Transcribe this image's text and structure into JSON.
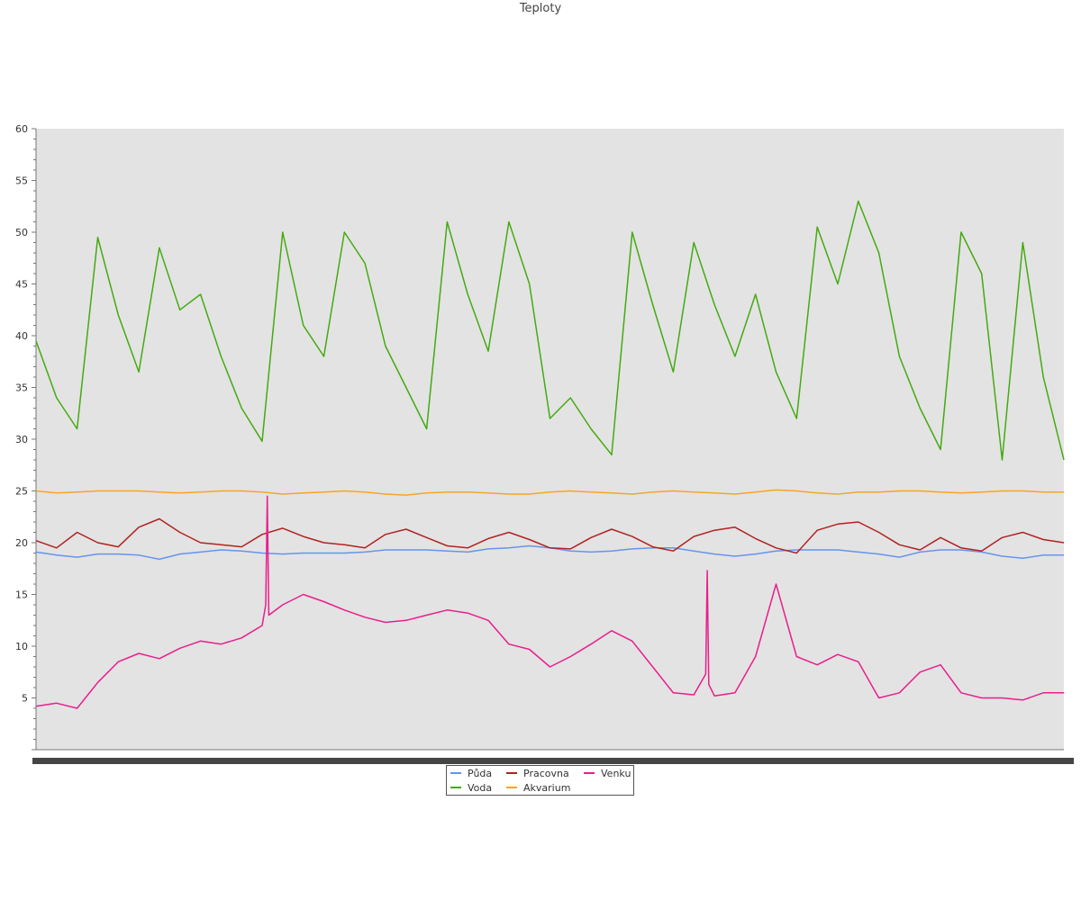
{
  "chart_data": {
    "type": "line",
    "title": "Teploty",
    "xlabel": "",
    "ylabel": "",
    "ylim": [
      0,
      60
    ],
    "yticks": [
      5,
      10,
      15,
      20,
      25,
      30,
      35,
      40,
      45,
      50,
      55,
      60
    ],
    "grid": false,
    "background": "#e3e3e3",
    "legend_position": "bottom-center",
    "x": [
      0,
      2,
      4,
      6,
      8,
      10,
      12,
      14,
      16,
      18,
      20,
      22,
      24,
      26,
      28,
      30,
      32,
      34,
      36,
      38,
      40,
      42,
      44,
      46,
      48,
      50,
      52,
      54,
      56,
      58,
      60,
      62,
      64,
      66,
      68,
      70,
      72,
      74,
      76,
      78,
      80,
      82,
      84,
      86,
      88,
      90,
      92,
      94,
      96,
      98,
      100
    ],
    "series": [
      {
        "name": "Půda",
        "color": "#6495ed",
        "values": [
          19.1,
          18.8,
          18.6,
          18.9,
          18.9,
          18.8,
          18.4,
          18.9,
          19.1,
          19.3,
          19.2,
          19.0,
          18.9,
          19.0,
          19.0,
          19.0,
          19.1,
          19.3,
          19.3,
          19.3,
          19.2,
          19.1,
          19.4,
          19.5,
          19.7,
          19.5,
          19.2,
          19.1,
          19.2,
          19.4,
          19.5,
          19.5,
          19.2,
          18.9,
          18.7,
          18.9,
          19.2,
          19.3,
          19.3,
          19.3,
          19.1,
          18.9,
          18.6,
          19.1,
          19.3,
          19.3,
          19.1,
          18.7,
          18.5,
          18.8,
          18.8
        ]
      },
      {
        "name": "Voda",
        "color": "#44aa11",
        "values": [
          39.5,
          34.0,
          31.0,
          49.5,
          42.0,
          36.5,
          48.5,
          42.5,
          44.0,
          38.0,
          33.0,
          29.8,
          50.0,
          41.0,
          38.0,
          50.0,
          47.0,
          39.0,
          35.0,
          31.0,
          51.0,
          44.0,
          38.5,
          51.0,
          45.0,
          32.0,
          34.0,
          31.0,
          28.5,
          50.0,
          43.0,
          36.5,
          49.0,
          43.0,
          38.0,
          44.0,
          36.5,
          32.0,
          50.5,
          45.0,
          53.0,
          48.0,
          38.0,
          33.0,
          29.0,
          50.0,
          46.0,
          28.0,
          49.0,
          36.0,
          28.0
        ]
      },
      {
        "name": "Pracovna",
        "color": "#b22222",
        "values": [
          20.2,
          19.5,
          21.0,
          20.0,
          19.6,
          21.5,
          22.3,
          21.0,
          20.0,
          19.8,
          19.6,
          20.8,
          21.4,
          20.6,
          20.0,
          19.8,
          19.5,
          20.8,
          21.3,
          20.5,
          19.7,
          19.5,
          20.4,
          21.0,
          20.3,
          19.5,
          19.4,
          20.5,
          21.3,
          20.6,
          19.6,
          19.2,
          20.6,
          21.2,
          21.5,
          20.4,
          19.5,
          19.0,
          21.2,
          21.8,
          22.0,
          21.0,
          19.8,
          19.3,
          20.5,
          19.5,
          19.2,
          20.5,
          21.0,
          20.3,
          20.0
        ]
      },
      {
        "name": "Akvarium",
        "color": "#f5a623",
        "values": [
          25.0,
          24.8,
          24.9,
          25.0,
          25.0,
          25.0,
          24.9,
          24.8,
          24.9,
          25.0,
          25.0,
          24.9,
          24.7,
          24.8,
          24.9,
          25.0,
          24.9,
          24.7,
          24.6,
          24.8,
          24.9,
          24.9,
          24.8,
          24.7,
          24.7,
          24.9,
          25.0,
          24.9,
          24.8,
          24.7,
          24.9,
          25.0,
          24.9,
          24.8,
          24.7,
          24.9,
          25.1,
          25.0,
          24.8,
          24.7,
          24.9,
          24.9,
          25.0,
          25.0,
          24.9,
          24.8,
          24.9,
          25.0,
          25.0,
          24.9,
          24.9
        ]
      },
      {
        "name": "Venku",
        "color": "#e91e8c",
        "values": [
          4.2,
          4.5,
          4.0,
          6.5,
          8.5,
          9.3,
          8.8,
          9.8,
          10.5,
          10.2,
          10.8,
          12.0,
          14.0,
          15.0,
          14.3,
          13.5,
          12.8,
          12.3,
          12.5,
          13.0,
          13.5,
          13.2,
          12.5,
          10.2,
          9.7,
          8.0,
          9.0,
          10.2,
          11.5,
          10.5,
          8.0,
          5.5,
          5.3,
          5.2,
          5.5,
          9.0,
          16.0,
          9.0,
          8.2,
          9.2,
          8.5,
          5.0,
          5.5,
          7.5,
          8.2,
          5.5,
          5.0,
          5.0,
          4.8,
          5.5,
          5.5
        ]
      }
    ],
    "spikes": [
      {
        "series": "Venku",
        "x": 22.5,
        "value": 24.5
      },
      {
        "series": "Venku",
        "x": 65.3,
        "value": 17.3
      }
    ]
  }
}
